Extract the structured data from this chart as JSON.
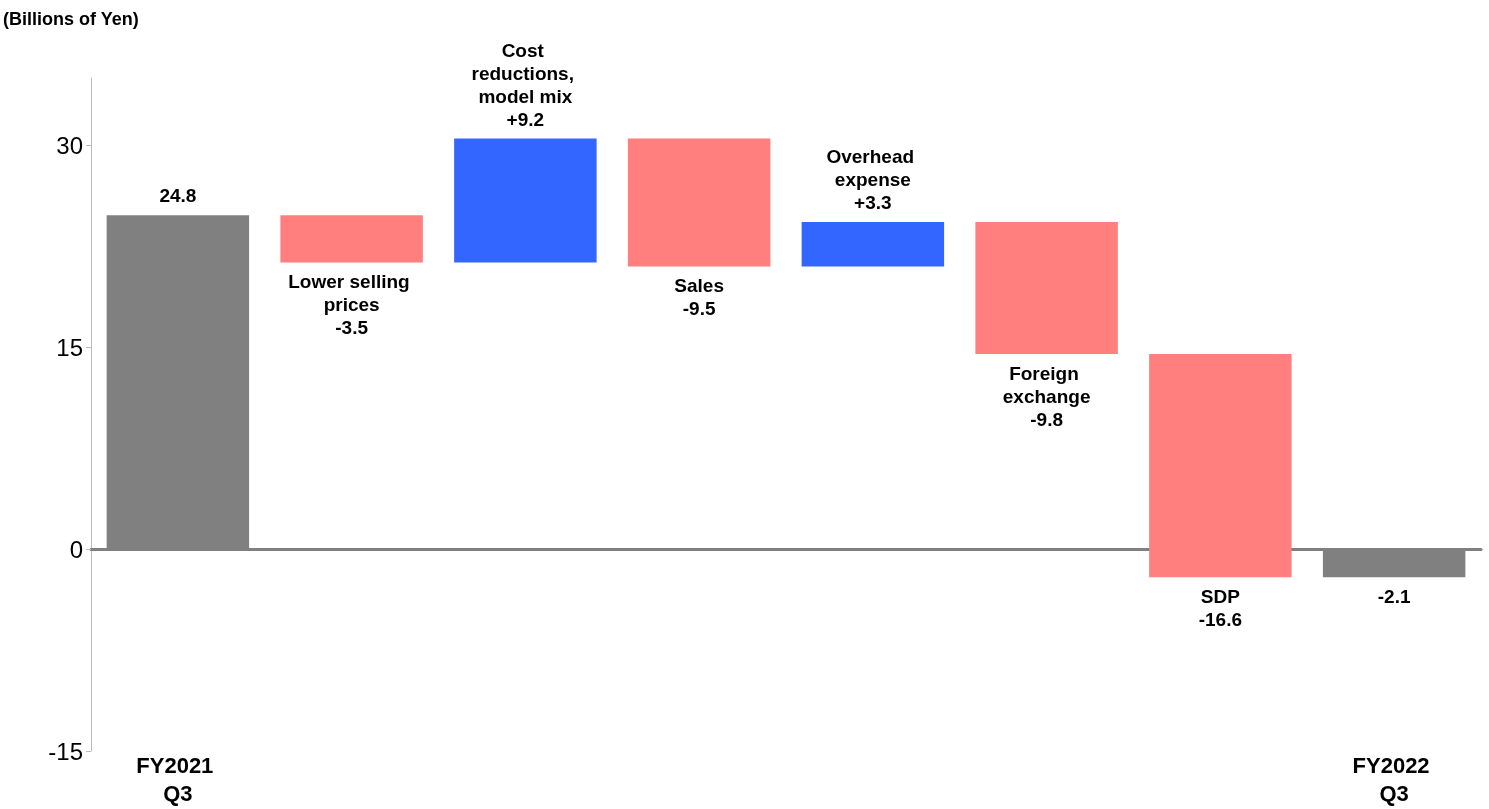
{
  "chart_data": {
    "type": "bar",
    "ylabel": "(Billions of Yen)",
    "categories": [
      "FY2021 Q3",
      "Lower selling prices",
      "Cost reductions, model mix",
      "Sales",
      "Overhead expense",
      "Foreign exchange",
      "SDP",
      "FY2022 Q3"
    ],
    "values": [
      24.8,
      -3.5,
      9.2,
      -9.5,
      3.3,
      -9.8,
      -16.6,
      -2.1
    ],
    "base": [
      0,
      24.8,
      21.3,
      30.5,
      21.0,
      24.3,
      14.5,
      0
    ],
    "colors": [
      "#808080",
      "#ff7f7f",
      "#3366ff",
      "#ff7f7f",
      "#3366ff",
      "#ff7f7f",
      "#ff7f7f",
      "#808080"
    ],
    "value_labels": [
      "24.8",
      "-3.5",
      "+9.2",
      "-9.5",
      "+3.3",
      "-9.8",
      "-16.6",
      "-2.1"
    ],
    "ylim": [
      -15,
      35
    ],
    "yticks": [
      -15,
      0,
      15,
      30
    ]
  }
}
